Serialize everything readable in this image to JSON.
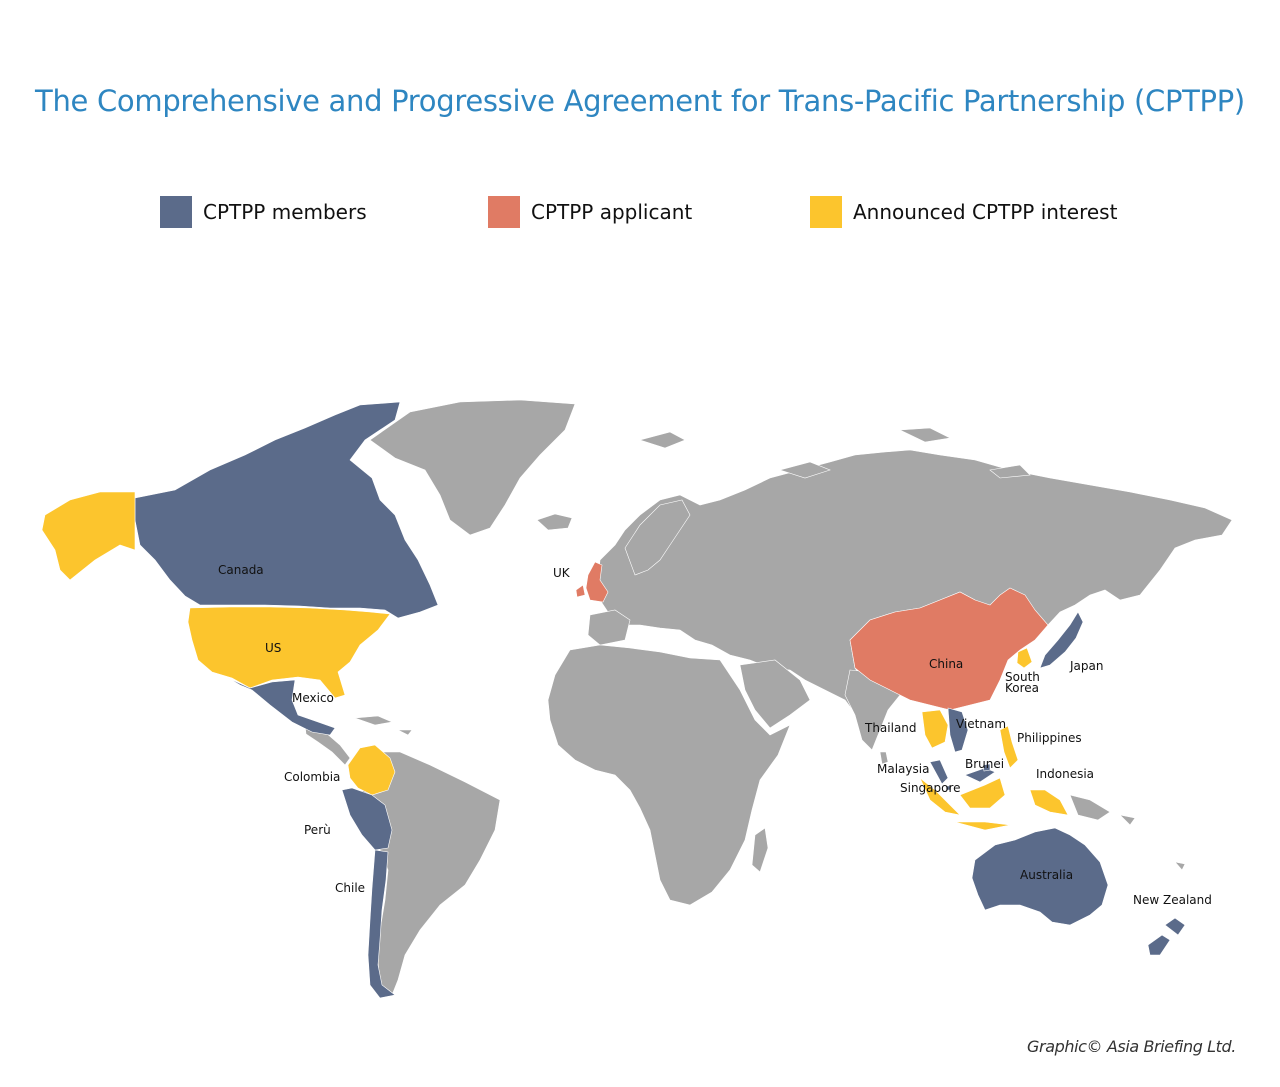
{
  "title": "The Comprehensive and Progressive Agreement for Trans-Pacific Partnership (CPTPP)",
  "legend": [
    {
      "label": "CPTPP members",
      "color": "#5b6b8a"
    },
    {
      "label": "CPTPP applicant",
      "color": "#e07b64"
    },
    {
      "label": "Announced CPTPP interest",
      "color": "#fcc52d"
    }
  ],
  "colors": {
    "member": "#5b6b8a",
    "applicant": "#e07b64",
    "interest": "#fcc52d",
    "other": "#a7a7a7",
    "ocean": "#ffffff"
  },
  "countries": {
    "canada": {
      "label": "Canada",
      "status": "member"
    },
    "us": {
      "label": "US",
      "status": "interest"
    },
    "mexico": {
      "label": "Mexico",
      "status": "member"
    },
    "colombia": {
      "label": "Colombia",
      "status": "interest"
    },
    "peru": {
      "label": "Perù",
      "status": "member"
    },
    "chile": {
      "label": "Chile",
      "status": "member"
    },
    "uk": {
      "label": "UK",
      "status": "applicant"
    },
    "china": {
      "label": "China",
      "status": "applicant"
    },
    "japan": {
      "label": "Japan",
      "status": "member"
    },
    "south_korea": {
      "label_line1": "South",
      "label_line2": "Korea",
      "status": "interest"
    },
    "thailand": {
      "label": "Thailand",
      "status": "interest"
    },
    "vietnam": {
      "label": "Vietnam",
      "status": "member"
    },
    "philippines": {
      "label": "Philippines",
      "status": "interest"
    },
    "malaysia": {
      "label": "Malaysia",
      "status": "member"
    },
    "brunei": {
      "label": "Brunei",
      "status": "member"
    },
    "singapore": {
      "label": "Singapore",
      "status": "member"
    },
    "indonesia": {
      "label": "Indonesia",
      "status": "interest"
    },
    "australia": {
      "label": "Australia",
      "status": "member"
    },
    "new_zealand": {
      "label": "New Zealand",
      "status": "member"
    }
  },
  "credit": "Graphic© Asia Briefing Ltd."
}
